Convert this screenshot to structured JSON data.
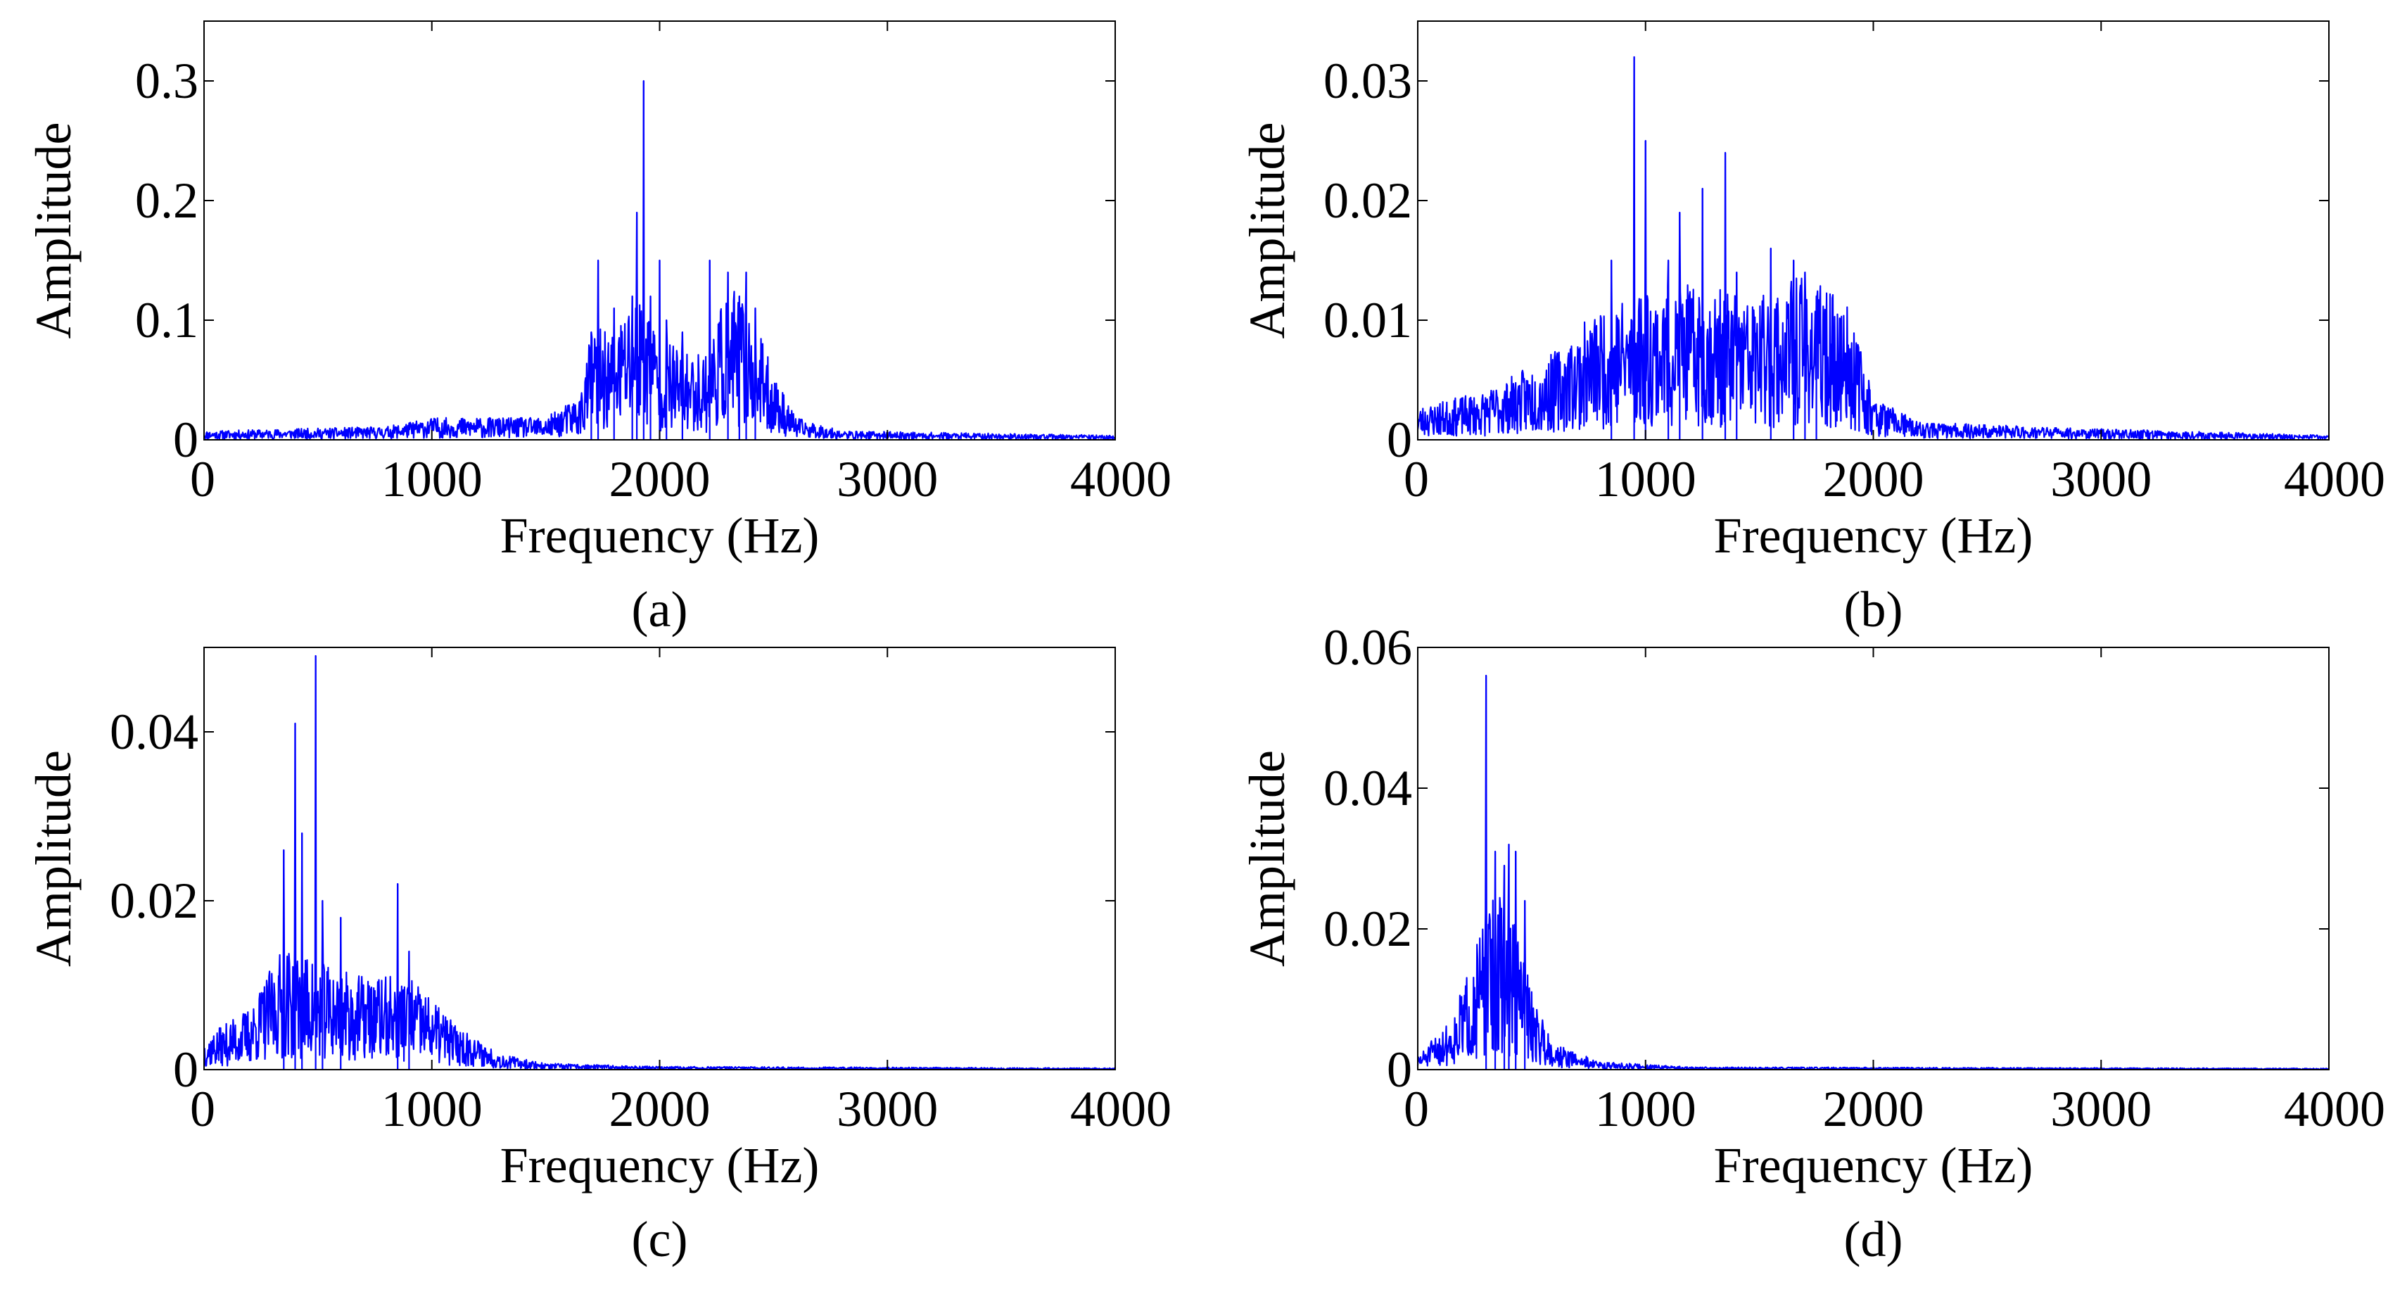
{
  "chart_data": [
    {
      "type": "line",
      "panel_label": "(a)",
      "xlabel": "Frequency (Hz)",
      "ylabel": "Amplitude",
      "xlim": [
        0,
        4000
      ],
      "ylim": [
        0,
        0.35
      ],
      "xticks": [
        0,
        1000,
        2000,
        3000,
        4000
      ],
      "xtick_labels": [
        "0",
        "1000",
        "2000",
        "3000",
        "4000"
      ],
      "yticks": [
        0,
        0.1,
        0.2,
        0.3
      ],
      "ytick_labels": [
        "0",
        "0.1",
        "0.2",
        "0.3"
      ],
      "color": "#0000ff",
      "envelope": [
        [
          0,
          0.004
        ],
        [
          800,
          0.006
        ],
        [
          1000,
          0.01
        ],
        [
          1500,
          0.01
        ],
        [
          1650,
          0.02
        ],
        [
          1700,
          0.05
        ],
        [
          1800,
          0.05
        ],
        [
          1900,
          0.07
        ],
        [
          2000,
          0.05
        ],
        [
          2100,
          0.04
        ],
        [
          2200,
          0.04
        ],
        [
          2300,
          0.07
        ],
        [
          2400,
          0.06
        ],
        [
          2500,
          0.03
        ],
        [
          2600,
          0.01
        ],
        [
          2800,
          0.004
        ],
        [
          4000,
          0.002
        ]
      ],
      "peaks": [
        [
          1700,
          0.09
        ],
        [
          1730,
          0.15
        ],
        [
          1800,
          0.11
        ],
        [
          1880,
          0.12
        ],
        [
          1900,
          0.19
        ],
        [
          1930,
          0.3
        ],
        [
          1960,
          0.12
        ],
        [
          2000,
          0.15
        ],
        [
          2030,
          0.1
        ],
        [
          2100,
          0.09
        ],
        [
          2220,
          0.15
        ],
        [
          2300,
          0.14
        ],
        [
          2350,
          0.12
        ],
        [
          2380,
          0.14
        ],
        [
          2420,
          0.11
        ]
      ],
      "seed": 11
    },
    {
      "type": "line",
      "panel_label": "(b)",
      "xlabel": "Frequency (Hz)",
      "ylabel": "Amplitude",
      "xlim": [
        0,
        4000
      ],
      "ylim": [
        0,
        0.035
      ],
      "xticks": [
        0,
        1000,
        2000,
        3000,
        4000
      ],
      "xtick_labels": [
        "0",
        "1000",
        "2000",
        "3000",
        "4000"
      ],
      "yticks": [
        0,
        0.01,
        0.02,
        0.03
      ],
      "ytick_labels": [
        "0",
        "0.01",
        "0.02",
        "0.03"
      ],
      "color": "#0000ff",
      "envelope": [
        [
          0,
          0.0015
        ],
        [
          300,
          0.0022
        ],
        [
          600,
          0.004
        ],
        [
          800,
          0.006
        ],
        [
          1000,
          0.007
        ],
        [
          1200,
          0.007
        ],
        [
          1500,
          0.0065
        ],
        [
          1700,
          0.0075
        ],
        [
          1900,
          0.006
        ],
        [
          2000,
          0.002
        ],
        [
          2200,
          0.0008
        ],
        [
          3000,
          0.0005
        ],
        [
          4000,
          0.0002
        ]
      ],
      "peaks": [
        [
          850,
          0.015
        ],
        [
          950,
          0.032
        ],
        [
          1000,
          0.025
        ],
        [
          1100,
          0.015
        ],
        [
          1150,
          0.019
        ],
        [
          1250,
          0.021
        ],
        [
          1350,
          0.024
        ],
        [
          1400,
          0.014
        ],
        [
          1550,
          0.016
        ],
        [
          1650,
          0.015
        ],
        [
          1700,
          0.014
        ],
        [
          1750,
          0.012
        ]
      ],
      "seed": 23
    },
    {
      "type": "line",
      "panel_label": "(c)",
      "xlabel": "Frequency (Hz)",
      "ylabel": "Amplitude",
      "xlim": [
        0,
        4000
      ],
      "ylim": [
        0,
        0.05
      ],
      "xticks": [
        0,
        1000,
        2000,
        3000,
        4000
      ],
      "xtick_labels": [
        "0",
        "1000",
        "2000",
        "3000",
        "4000"
      ],
      "yticks": [
        0,
        0.02,
        0.04
      ],
      "ytick_labels": [
        "0",
        "0.02",
        "0.04"
      ],
      "color": "#0000ff",
      "envelope": [
        [
          0,
          0.002
        ],
        [
          200,
          0.004
        ],
        [
          350,
          0.008
        ],
        [
          500,
          0.007
        ],
        [
          700,
          0.006
        ],
        [
          900,
          0.006
        ],
        [
          1100,
          0.003
        ],
        [
          1300,
          0.001
        ],
        [
          1500,
          0.0004
        ],
        [
          2000,
          0.0002
        ],
        [
          4000,
          0.0001
        ]
      ],
      "peaks": [
        [
          350,
          0.026
        ],
        [
          400,
          0.041
        ],
        [
          430,
          0.028
        ],
        [
          490,
          0.049
        ],
        [
          520,
          0.02
        ],
        [
          600,
          0.018
        ],
        [
          850,
          0.022
        ],
        [
          900,
          0.014
        ]
      ],
      "seed": 37
    },
    {
      "type": "line",
      "panel_label": "(d)",
      "xlabel": "Frequency (Hz)",
      "ylabel": "Amplitude",
      "xlim": [
        0,
        4000
      ],
      "ylim": [
        0,
        0.06
      ],
      "xticks": [
        0,
        1000,
        2000,
        3000,
        4000
      ],
      "xtick_labels": [
        "0",
        "1000",
        "2000",
        "3000",
        "4000"
      ],
      "yticks": [
        0,
        0.02,
        0.04,
        0.06
      ],
      "ytick_labels": [
        "0",
        "0.02",
        "0.04",
        "0.06"
      ],
      "color": "#0000ff",
      "envelope": [
        [
          0,
          0.001
        ],
        [
          150,
          0.004
        ],
        [
          250,
          0.009
        ],
        [
          330,
          0.014
        ],
        [
          420,
          0.012
        ],
        [
          500,
          0.006
        ],
        [
          600,
          0.002
        ],
        [
          800,
          0.0006
        ],
        [
          1200,
          0.0002
        ],
        [
          4000,
          0.0001
        ]
      ],
      "peaks": [
        [
          300,
          0.056
        ],
        [
          340,
          0.031
        ],
        [
          380,
          0.029
        ],
        [
          400,
          0.032
        ],
        [
          430,
          0.031
        ],
        [
          470,
          0.024
        ]
      ],
      "seed": 51
    }
  ]
}
